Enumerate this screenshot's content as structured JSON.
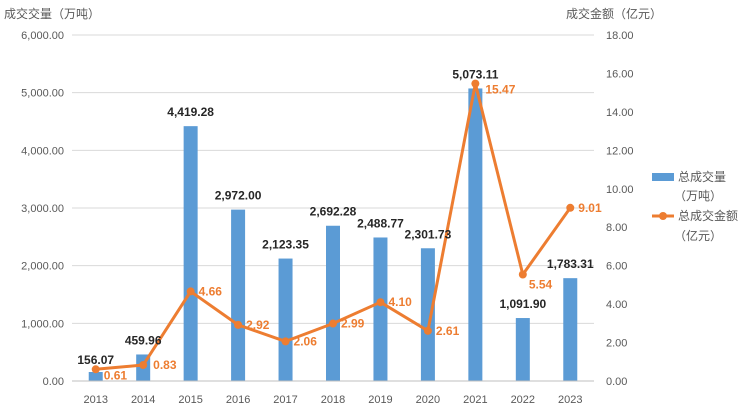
{
  "chart_data": {
    "type": "bar",
    "categories": [
      "2013",
      "2014",
      "2015",
      "2016",
      "2017",
      "2018",
      "2019",
      "2020",
      "2021",
      "2022",
      "2023"
    ],
    "series": [
      {
        "name": "总成交量（万吨）",
        "legend_lines": [
          "总成交量",
          "（万吨）"
        ],
        "type": "bar",
        "axis": "left",
        "color": "#5B9BD5",
        "values": [
          156.07,
          459.96,
          4419.28,
          2972.0,
          2123.35,
          2692.28,
          2488.77,
          2301.73,
          5073.11,
          1091.9,
          1783.31
        ],
        "labels": [
          "156.07",
          "459.96",
          "4,419.28",
          "2,972.00",
          "2,123.35",
          "2,692.28",
          "2,488.77",
          "2,301.73",
          "5,073.11",
          "1,091.90",
          "1,783.31"
        ]
      },
      {
        "name": "总成交金额（亿元）",
        "legend_lines": [
          "总成交金额",
          "（亿元）"
        ],
        "type": "line",
        "axis": "right",
        "color": "#ED7D31",
        "values": [
          0.61,
          0.83,
          4.66,
          2.92,
          2.06,
          2.99,
          4.1,
          2.61,
          15.47,
          5.54,
          9.01
        ],
        "labels": [
          "0.61",
          "0.83",
          "4.66",
          "2.92",
          "2.06",
          "2.99",
          "4.10",
          "2.61",
          "15.47",
          "5.54",
          "9.01"
        ]
      }
    ],
    "ylabel_left": "成交交量（万吨）",
    "ylabel_right": "成交金额（亿元）",
    "ylim_left": [
      0,
      6000
    ],
    "ylim_right": [
      0,
      18
    ],
    "yticks_left": [
      "0.00",
      "1,000.00",
      "2,000.00",
      "3,000.00",
      "4,000.00",
      "5,000.00",
      "6,000.00"
    ],
    "yticks_right": [
      "0.00",
      "2.00",
      "4.00",
      "6.00",
      "8.00",
      "10.00",
      "12.00",
      "14.00",
      "16.00",
      "18.00"
    ],
    "grid": true,
    "legend_position": "right"
  }
}
